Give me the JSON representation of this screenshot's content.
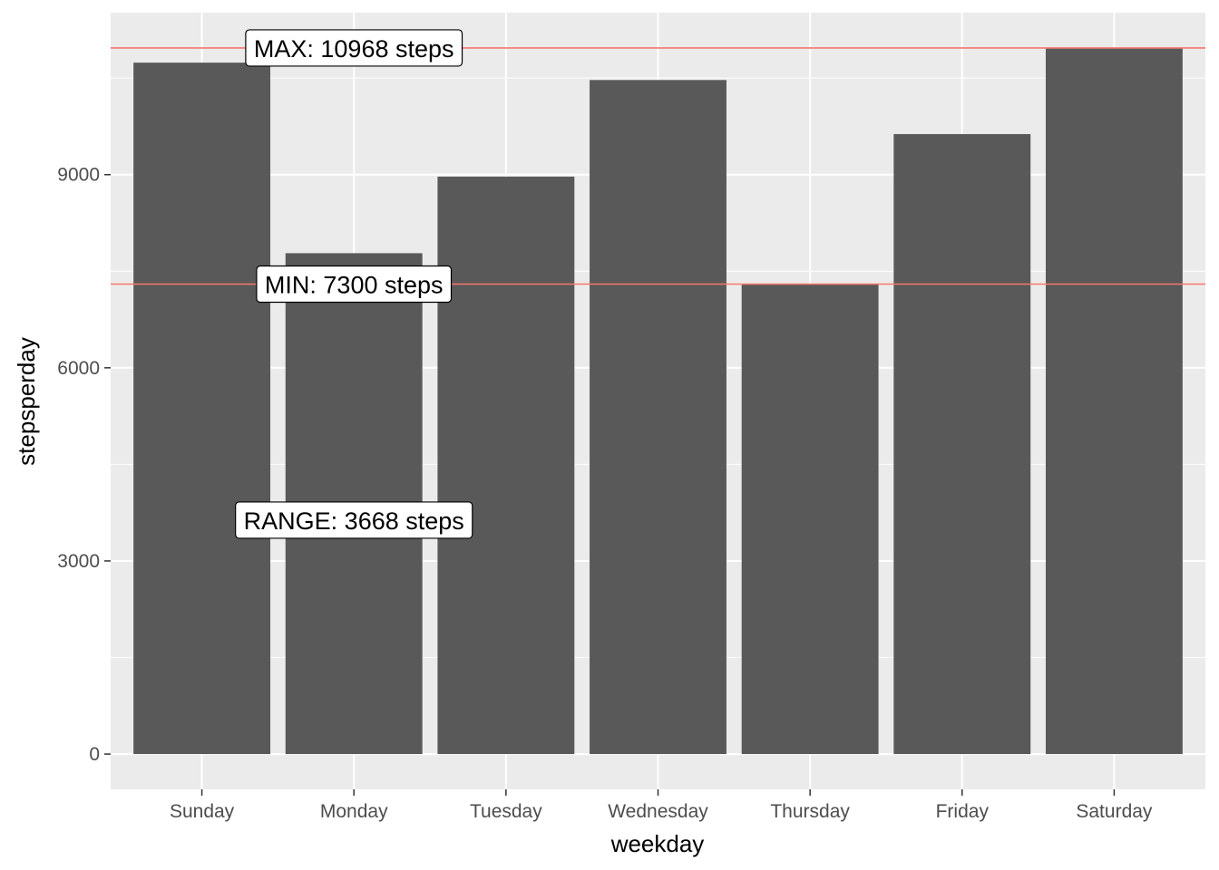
{
  "chart_data": {
    "type": "bar",
    "categories": [
      "Sunday",
      "Monday",
      "Tuesday",
      "Wednesday",
      "Thursday",
      "Friday",
      "Saturday"
    ],
    "values": [
      10740,
      7780,
      8970,
      10470,
      7300,
      9630,
      10968
    ],
    "xlabel": "weekday",
    "ylabel": "stepsperday",
    "yticks": [
      0,
      3000,
      6000,
      9000
    ],
    "ylim": [
      -548,
      11516
    ],
    "grid": true,
    "bar_color": "#595959",
    "panel_color": "#ebebeb",
    "reference_lines": [
      {
        "value": 10968,
        "color": "#f8766d"
      },
      {
        "value": 7300,
        "color": "#f8766d"
      }
    ],
    "annotations": [
      {
        "text": "MAX: 10968 steps",
        "x": "Monday",
        "y": 10968
      },
      {
        "text": "MIN: 7300 steps",
        "x": "Monday",
        "y": 7300
      },
      {
        "text": "RANGE: 3668 steps",
        "x": "Monday",
        "y": 3634
      }
    ]
  }
}
